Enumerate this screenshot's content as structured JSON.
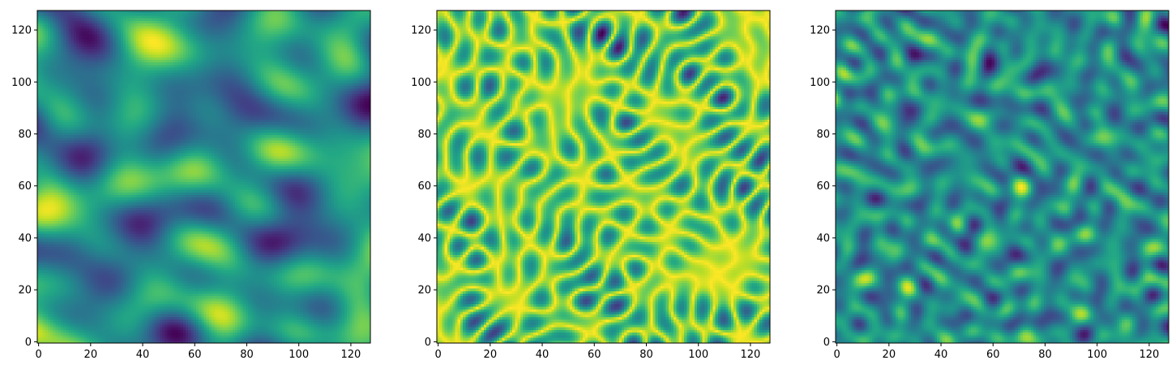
{
  "chart_data": [
    {
      "type": "heatmap",
      "title": "",
      "xlabel": "",
      "ylabel": "",
      "colormap": "viridis",
      "texture": "smooth-blobs",
      "grid_shape": [
        128,
        128
      ],
      "xlim": [
        -0.5,
        127.5
      ],
      "ylim": [
        127.5,
        -0.5
      ],
      "x_ticks": [
        0,
        20,
        40,
        60,
        80,
        100,
        120
      ],
      "y_ticks": [
        0,
        20,
        40,
        60,
        80,
        100,
        120
      ],
      "grid": false,
      "colorbar": false
    },
    {
      "type": "heatmap",
      "title": "",
      "xlabel": "",
      "ylabel": "",
      "colormap": "viridis",
      "texture": "worm-like-streaks",
      "grid_shape": [
        128,
        128
      ],
      "xlim": [
        -0.5,
        127.5
      ],
      "ylim": [
        127.5,
        -0.5
      ],
      "x_ticks": [
        0,
        20,
        40,
        60,
        80,
        100,
        120
      ],
      "y_ticks": [
        0,
        20,
        40,
        60,
        80,
        100,
        120
      ],
      "grid": false,
      "colorbar": false
    },
    {
      "type": "heatmap",
      "title": "",
      "xlabel": "",
      "ylabel": "",
      "colormap": "viridis",
      "texture": "fine-speckle",
      "grid_shape": [
        128,
        128
      ],
      "xlim": [
        -0.5,
        127.5
      ],
      "ylim": [
        127.5,
        -0.5
      ],
      "x_ticks": [
        0,
        20,
        40,
        60,
        80,
        100,
        120
      ],
      "y_ticks": [
        0,
        20,
        40,
        60,
        80,
        100,
        120
      ],
      "grid": false,
      "colorbar": false
    }
  ]
}
